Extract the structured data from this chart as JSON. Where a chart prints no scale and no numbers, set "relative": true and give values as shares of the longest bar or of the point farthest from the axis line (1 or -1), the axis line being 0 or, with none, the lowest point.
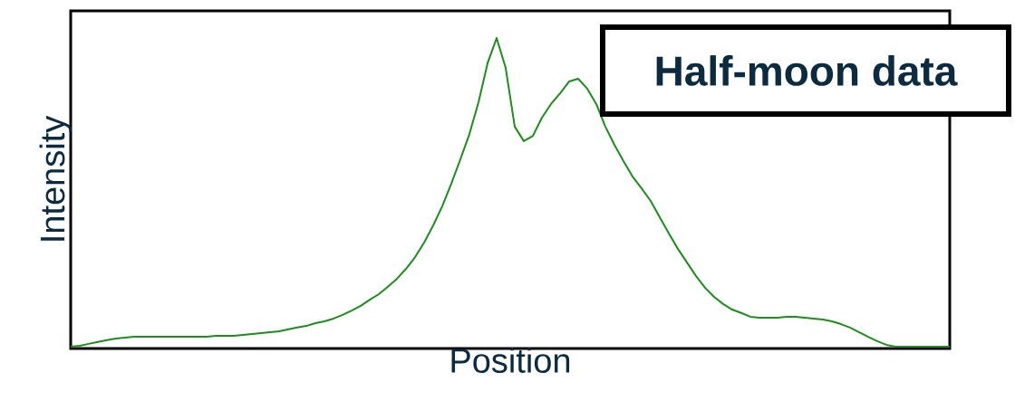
{
  "chart_data": {
    "type": "line",
    "title": "Half-moon data",
    "xlabel": "Position",
    "ylabel": "Intensity",
    "relative": true,
    "categories": [
      null,
      null,
      null,
      null,
      null,
      null,
      null,
      null,
      null,
      null,
      null,
      null,
      null,
      null,
      null,
      null,
      null,
      null,
      null,
      null,
      null,
      null,
      null,
      null,
      null,
      null,
      null,
      null,
      null,
      null,
      null,
      null,
      null,
      null,
      null,
      null,
      null,
      null,
      null,
      null,
      null,
      null,
      null,
      null,
      null,
      null,
      null,
      null,
      null,
      null,
      null,
      null,
      null,
      null,
      null,
      null,
      null,
      null,
      null,
      null,
      null,
      null,
      null,
      null,
      null,
      null,
      null,
      null,
      null,
      null,
      null,
      null,
      null,
      null,
      null,
      null,
      null,
      null,
      null,
      null,
      null,
      null,
      null,
      null,
      null,
      null,
      null,
      null,
      null,
      null,
      null,
      null,
      null,
      null,
      null,
      null,
      null,
      null
    ],
    "series": [
      {
        "color": "#1e8c1e",
        "values": [
          0,
          0.003,
          0.009,
          0.015,
          0.021,
          0.026,
          0.029,
          0.032,
          0.032,
          0.032,
          0.032,
          0.032,
          0.032,
          0.032,
          0.032,
          0.032,
          0.035,
          0.035,
          0.035,
          0.038,
          0.041,
          0.044,
          0.047,
          0.05,
          0.056,
          0.062,
          0.067,
          0.076,
          0.082,
          0.091,
          0.103,
          0.117,
          0.132,
          0.152,
          0.17,
          0.194,
          0.22,
          0.252,
          0.29,
          0.337,
          0.393,
          0.455,
          0.528,
          0.607,
          0.689,
          0.792,
          0.918,
          1,
          0.903,
          0.713,
          0.666,
          0.683,
          0.742,
          0.786,
          0.821,
          0.859,
          0.868,
          0.836,
          0.786,
          0.713,
          0.654,
          0.601,
          0.551,
          0.513,
          0.472,
          0.419,
          0.367,
          0.317,
          0.273,
          0.229,
          0.191,
          0.161,
          0.138,
          0.12,
          0.109,
          0.097,
          0.094,
          0.094,
          0.094,
          0.097,
          0.097,
          0.094,
          0.091,
          0.088,
          0.082,
          0.073,
          0.062,
          0.047,
          0.032,
          0.018,
          0.006,
          0,
          0,
          0,
          0,
          0,
          0,
          0
        ]
      }
    ]
  }
}
